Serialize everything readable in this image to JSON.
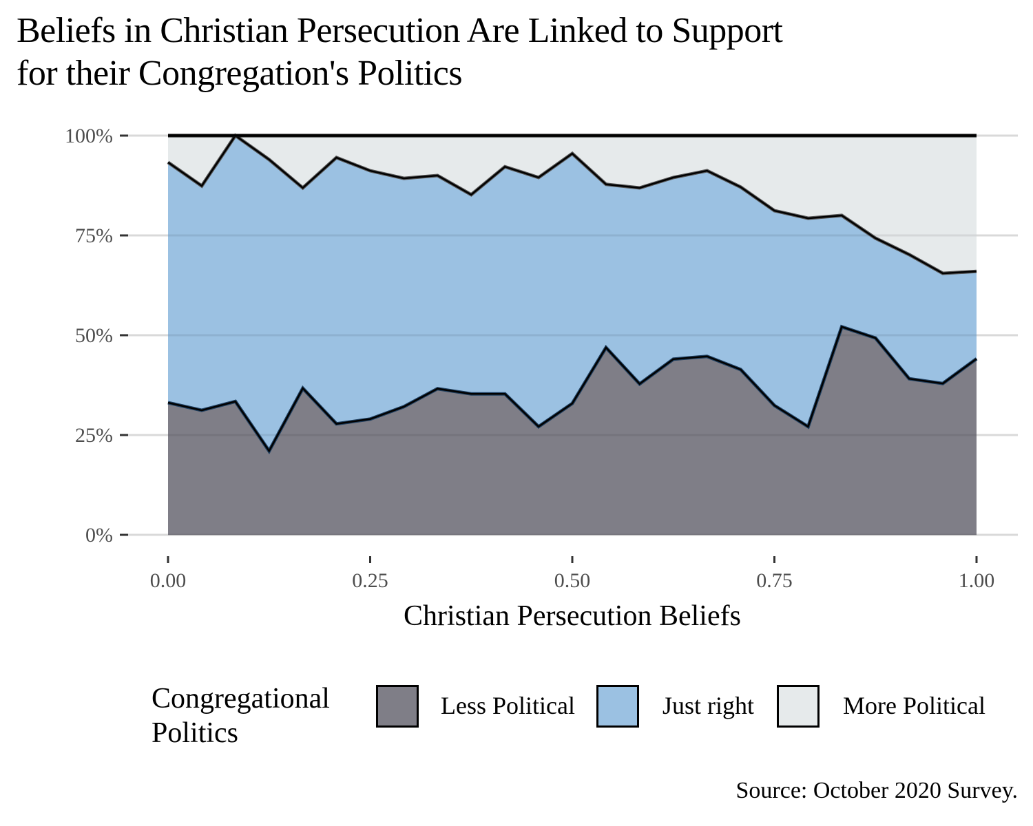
{
  "chart_data": {
    "type": "area",
    "stacked": true,
    "normalized": true,
    "title": "Beliefs in Christian Persecution Are Linked to Support for their Congregation's Politics",
    "title_lines": [
      "Beliefs in Christian Persecution Are Linked to Support",
      "for their Congregation's Politics"
    ],
    "xlabel": "Christian Persecution Beliefs",
    "ylabel": "",
    "xlim": [
      0,
      1
    ],
    "ylim": [
      0,
      100
    ],
    "x_ticks": [
      0,
      0.25,
      0.5,
      0.75,
      1.0
    ],
    "x_tick_labels": [
      "0.00",
      "0.25",
      "0.50",
      "0.75",
      "1.00"
    ],
    "y_ticks": [
      0,
      25,
      50,
      75,
      100
    ],
    "y_tick_labels": [
      "0%",
      "25%",
      "50%",
      "75%",
      "100%"
    ],
    "grid": "horizontal",
    "x": [
      0,
      0.0417,
      0.0833,
      0.125,
      0.1667,
      0.2083,
      0.25,
      0.2917,
      0.3333,
      0.375,
      0.4167,
      0.4583,
      0.5,
      0.5417,
      0.5833,
      0.625,
      0.6667,
      0.7083,
      0.75,
      0.7917,
      0.8333,
      0.875,
      0.9167,
      0.9583,
      1.0
    ],
    "series": [
      {
        "name": "Less Political",
        "color": "#7f7e87",
        "values": [
          33.1,
          31.2,
          33.4,
          21.0,
          36.7,
          27.8,
          29.0,
          32.1,
          36.6,
          35.3,
          35.3,
          27.1,
          32.9,
          46.9,
          37.8,
          44.0,
          44.7,
          41.4,
          32.4,
          27.1,
          52.1,
          49.3,
          39.1,
          37.9,
          44.1
        ]
      },
      {
        "name": "Just right",
        "color": "#9bc1e2",
        "values": [
          60.2,
          56.2,
          66.6,
          73.0,
          50.2,
          66.7,
          62.2,
          57.2,
          53.4,
          49.9,
          56.9,
          62.4,
          62.6,
          40.9,
          49.1,
          45.5,
          46.5,
          45.7,
          48.8,
          52.2,
          27.9,
          25.0,
          31.1,
          27.6,
          21.9
        ]
      },
      {
        "name": "More Political",
        "color": "#e6eaeb",
        "values": [
          6.7,
          12.6,
          0.0,
          6.0,
          13.1,
          5.5,
          8.8,
          10.7,
          10.0,
          14.8,
          7.8,
          10.5,
          4.5,
          12.2,
          13.1,
          10.5,
          8.8,
          12.9,
          18.8,
          20.7,
          20.0,
          25.7,
          29.8,
          34.5,
          34.0
        ]
      }
    ],
    "legend": {
      "title_lines": [
        "Congregational",
        "Politics"
      ],
      "placement": "bottom",
      "entries": [
        "Less Political",
        "Just right",
        "More Political"
      ]
    },
    "caption": "Source: October 2020 Survey."
  }
}
